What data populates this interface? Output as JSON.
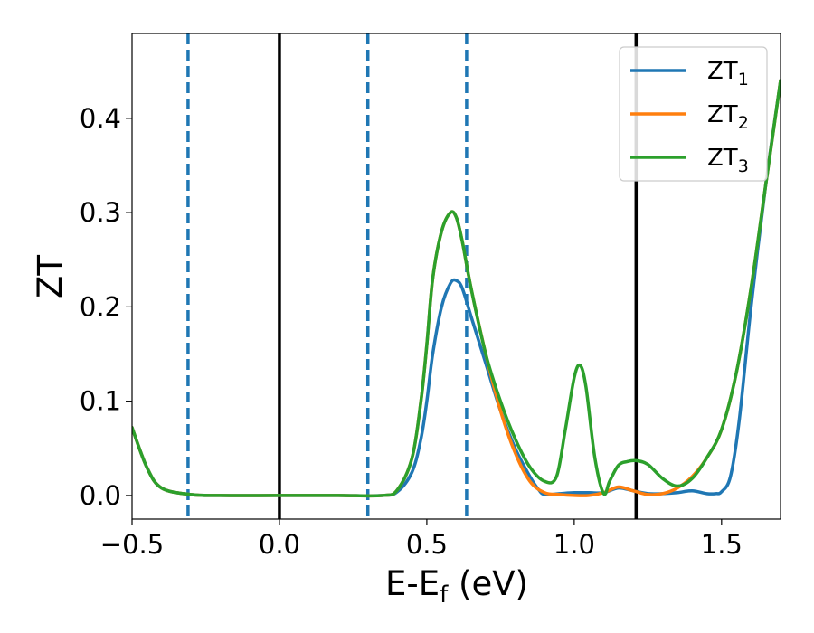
{
  "chart_data": {
    "type": "line",
    "title": "",
    "xlabel": "E-E",
    "xlabel_sub": "f",
    "xlabel_unit": " (eV)",
    "ylabel": "ZT",
    "xlim": [
      -0.5,
      1.7
    ],
    "ylim": [
      -0.025,
      0.49
    ],
    "grid": false,
    "legend": "top-right",
    "xticks": [
      -0.5,
      0.0,
      0.5,
      1.0,
      1.5
    ],
    "xtick_labels": [
      "−0.5",
      "0.0",
      "0.5",
      "1.0",
      "1.5"
    ],
    "yticks": [
      0.0,
      0.1,
      0.2,
      0.3,
      0.4
    ],
    "ytick_labels": [
      "0.0",
      "0.1",
      "0.2",
      "0.3",
      "0.4"
    ],
    "vlines": [
      {
        "x": -0.31,
        "style": "dashed",
        "color": "#1f77b4"
      },
      {
        "x": 0.0,
        "style": "solid",
        "color": "#000000"
      },
      {
        "x": 0.3,
        "style": "dashed",
        "color": "#1f77b4"
      },
      {
        "x": 0.635,
        "style": "dashed",
        "color": "#1f77b4"
      },
      {
        "x": 1.21,
        "style": "solid",
        "color": "#000000"
      }
    ],
    "series": [
      {
        "name": "ZT",
        "sub": "1",
        "color": "#1f77b4",
        "x": [
          -0.5,
          -0.45,
          -0.4,
          -0.3,
          -0.2,
          0.0,
          0.2,
          0.35,
          0.4,
          0.45,
          0.48,
          0.5,
          0.52,
          0.55,
          0.58,
          0.6,
          0.62,
          0.65,
          0.7,
          0.75,
          0.8,
          0.85,
          0.88,
          0.9,
          0.95,
          1.0,
          1.05,
          1.1,
          1.15,
          1.2,
          1.25,
          1.3,
          1.35,
          1.4,
          1.45,
          1.48,
          1.5,
          1.53,
          1.56,
          1.6,
          1.65,
          1.7
        ],
        "y": [
          0.072,
          0.03,
          0.008,
          0.001,
          0.0,
          0.0,
          0.0,
          0.0,
          0.004,
          0.025,
          0.06,
          0.1,
          0.15,
          0.2,
          0.225,
          0.228,
          0.22,
          0.19,
          0.14,
          0.09,
          0.05,
          0.02,
          0.006,
          0.001,
          0.002,
          0.003,
          0.003,
          0.003,
          0.008,
          0.005,
          0.002,
          0.002,
          0.003,
          0.005,
          0.002,
          0.002,
          0.004,
          0.02,
          0.08,
          0.2,
          0.33,
          0.44
        ]
      },
      {
        "name": "ZT",
        "sub": "2",
        "color": "#ff7f0e",
        "x": [
          -0.5,
          -0.45,
          -0.4,
          -0.3,
          -0.2,
          0.0,
          0.2,
          0.35,
          0.4,
          0.45,
          0.48,
          0.5,
          0.52,
          0.55,
          0.58,
          0.6,
          0.62,
          0.65,
          0.7,
          0.75,
          0.8,
          0.85,
          0.9,
          0.95,
          1.0,
          1.05,
          1.1,
          1.15,
          1.2,
          1.25,
          1.3,
          1.35,
          1.4,
          1.45,
          1.5,
          1.55,
          1.6,
          1.65,
          1.7
        ],
        "y": [
          0.072,
          0.03,
          0.008,
          0.001,
          0.0,
          0.0,
          0.0,
          0.0,
          0.006,
          0.04,
          0.1,
          0.16,
          0.23,
          0.28,
          0.3,
          0.295,
          0.27,
          0.22,
          0.15,
          0.09,
          0.045,
          0.015,
          0.003,
          0.001,
          0.0,
          0.0,
          0.003,
          0.009,
          0.005,
          0.001,
          0.002,
          0.008,
          0.02,
          0.04,
          0.07,
          0.13,
          0.22,
          0.33,
          0.44
        ]
      },
      {
        "name": "ZT",
        "sub": "3",
        "color": "#2ca02c",
        "x": [
          -0.5,
          -0.45,
          -0.4,
          -0.3,
          -0.2,
          0.0,
          0.2,
          0.35,
          0.4,
          0.45,
          0.48,
          0.5,
          0.52,
          0.55,
          0.58,
          0.6,
          0.62,
          0.65,
          0.7,
          0.75,
          0.8,
          0.85,
          0.9,
          0.94,
          0.97,
          1.0,
          1.02,
          1.04,
          1.07,
          1.1,
          1.12,
          1.15,
          1.18,
          1.21,
          1.25,
          1.3,
          1.35,
          1.4,
          1.45,
          1.5,
          1.55,
          1.6,
          1.65,
          1.7
        ],
        "y": [
          0.072,
          0.03,
          0.008,
          0.001,
          0.0,
          0.0,
          0.0,
          0.0,
          0.006,
          0.04,
          0.1,
          0.16,
          0.23,
          0.28,
          0.3,
          0.295,
          0.27,
          0.22,
          0.15,
          0.1,
          0.06,
          0.03,
          0.015,
          0.02,
          0.07,
          0.125,
          0.138,
          0.115,
          0.04,
          0.002,
          0.015,
          0.032,
          0.036,
          0.037,
          0.033,
          0.018,
          0.01,
          0.018,
          0.04,
          0.07,
          0.13,
          0.22,
          0.33,
          0.44
        ]
      }
    ]
  }
}
